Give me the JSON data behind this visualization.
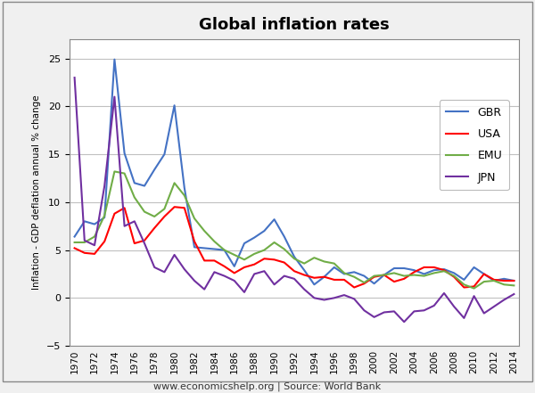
{
  "title": "Global inflation rates",
  "ylabel": "Inflation - GDP deflation annual % change",
  "footnote": "www.economicshelp.org | Source: World Bank",
  "years": [
    1970,
    1971,
    1972,
    1973,
    1974,
    1975,
    1976,
    1977,
    1978,
    1979,
    1980,
    1981,
    1982,
    1983,
    1984,
    1985,
    1986,
    1987,
    1988,
    1989,
    1990,
    1991,
    1992,
    1993,
    1994,
    1995,
    1996,
    1997,
    1998,
    1999,
    2000,
    2001,
    2002,
    2003,
    2004,
    2005,
    2006,
    2007,
    2008,
    2009,
    2010,
    2011,
    2012,
    2013,
    2014
  ],
  "GBR": [
    6.4,
    8.0,
    7.7,
    8.4,
    24.9,
    15.1,
    12.0,
    11.7,
    13.4,
    15.0,
    20.1,
    11.5,
    5.3,
    5.2,
    5.1,
    5.0,
    3.3,
    5.7,
    6.3,
    7.0,
    8.2,
    6.4,
    4.3,
    2.9,
    1.4,
    2.2,
    3.2,
    2.5,
    2.7,
    2.3,
    1.5,
    2.4,
    3.1,
    3.1,
    2.9,
    2.5,
    2.9,
    3.0,
    2.6,
    1.9,
    3.2,
    2.5,
    1.8,
    2.0,
    1.8
  ],
  "USA": [
    5.2,
    4.7,
    4.6,
    5.9,
    8.8,
    9.4,
    5.7,
    6.0,
    7.3,
    8.5,
    9.5,
    9.4,
    5.9,
    3.9,
    3.9,
    3.3,
    2.6,
    3.2,
    3.5,
    4.1,
    4.0,
    3.7,
    2.8,
    2.4,
    2.1,
    2.2,
    1.9,
    1.9,
    1.1,
    1.5,
    2.2,
    2.4,
    1.7,
    2.0,
    2.7,
    3.2,
    3.2,
    2.9,
    2.2,
    1.1,
    1.2,
    2.5,
    1.9,
    1.8,
    1.8
  ],
  "EMU": [
    5.8,
    5.8,
    6.4,
    8.6,
    13.2,
    13.0,
    10.5,
    9.0,
    8.5,
    9.3,
    12.0,
    10.7,
    8.3,
    7.0,
    5.9,
    5.0,
    4.5,
    4.0,
    4.6,
    5.0,
    5.8,
    5.1,
    4.1,
    3.6,
    4.2,
    3.8,
    3.6,
    2.6,
    2.2,
    1.6,
    2.3,
    2.4,
    2.6,
    2.3,
    2.4,
    2.3,
    2.6,
    2.8,
    2.3,
    1.4,
    1.0,
    1.7,
    1.8,
    1.4,
    1.3
  ],
  "JPN": [
    23.0,
    6.0,
    5.5,
    11.7,
    21.0,
    7.5,
    8.0,
    5.7,
    3.2,
    2.7,
    4.5,
    3.0,
    1.8,
    0.9,
    2.7,
    2.3,
    1.8,
    0.6,
    2.5,
    2.8,
    1.4,
    2.3,
    2.0,
    0.9,
    0.0,
    -0.2,
    0.0,
    0.3,
    -0.1,
    -1.3,
    -2.0,
    -1.5,
    -1.4,
    -2.5,
    -1.4,
    -1.3,
    -0.8,
    0.5,
    -0.9,
    -2.1,
    0.2,
    -1.6,
    -0.9,
    -0.2,
    0.4
  ],
  "GBR_color": "#4472C4",
  "USA_color": "#FF0000",
  "EMU_color": "#70AD47",
  "JPN_color": "#7030A0",
  "ylim": [
    -5,
    27
  ],
  "yticks": [
    -5,
    0,
    5,
    10,
    15,
    20,
    25
  ],
  "background_color": "#FFFFFF",
  "outer_background": "#F0F0F0",
  "grid_color": "#C0C0C0",
  "border_color": "#A0A0A0"
}
